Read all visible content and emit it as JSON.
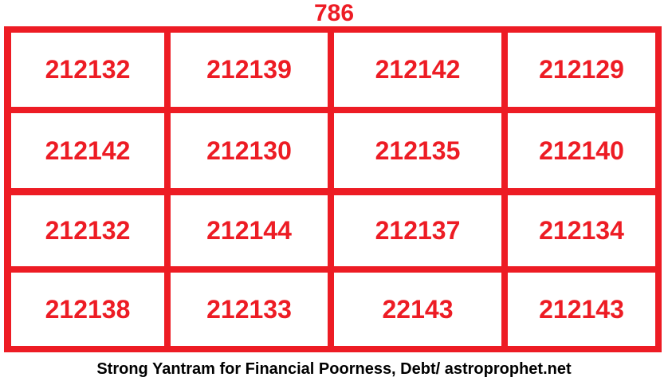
{
  "title": "786",
  "grid": [
    [
      "212132",
      "212139",
      "212142",
      "212129"
    ],
    [
      "212142",
      "212130",
      "212135",
      "212140"
    ],
    [
      "212132",
      "212144",
      "212137",
      "212134"
    ],
    [
      "212138",
      "212133",
      "22143",
      "212143"
    ]
  ],
  "caption": "Strong Yantram for Financial Poorness, Debt/ astroprophet.net",
  "colors": {
    "grid": "#ed1c24",
    "text": "#ed1c24",
    "caption": "#000000"
  }
}
